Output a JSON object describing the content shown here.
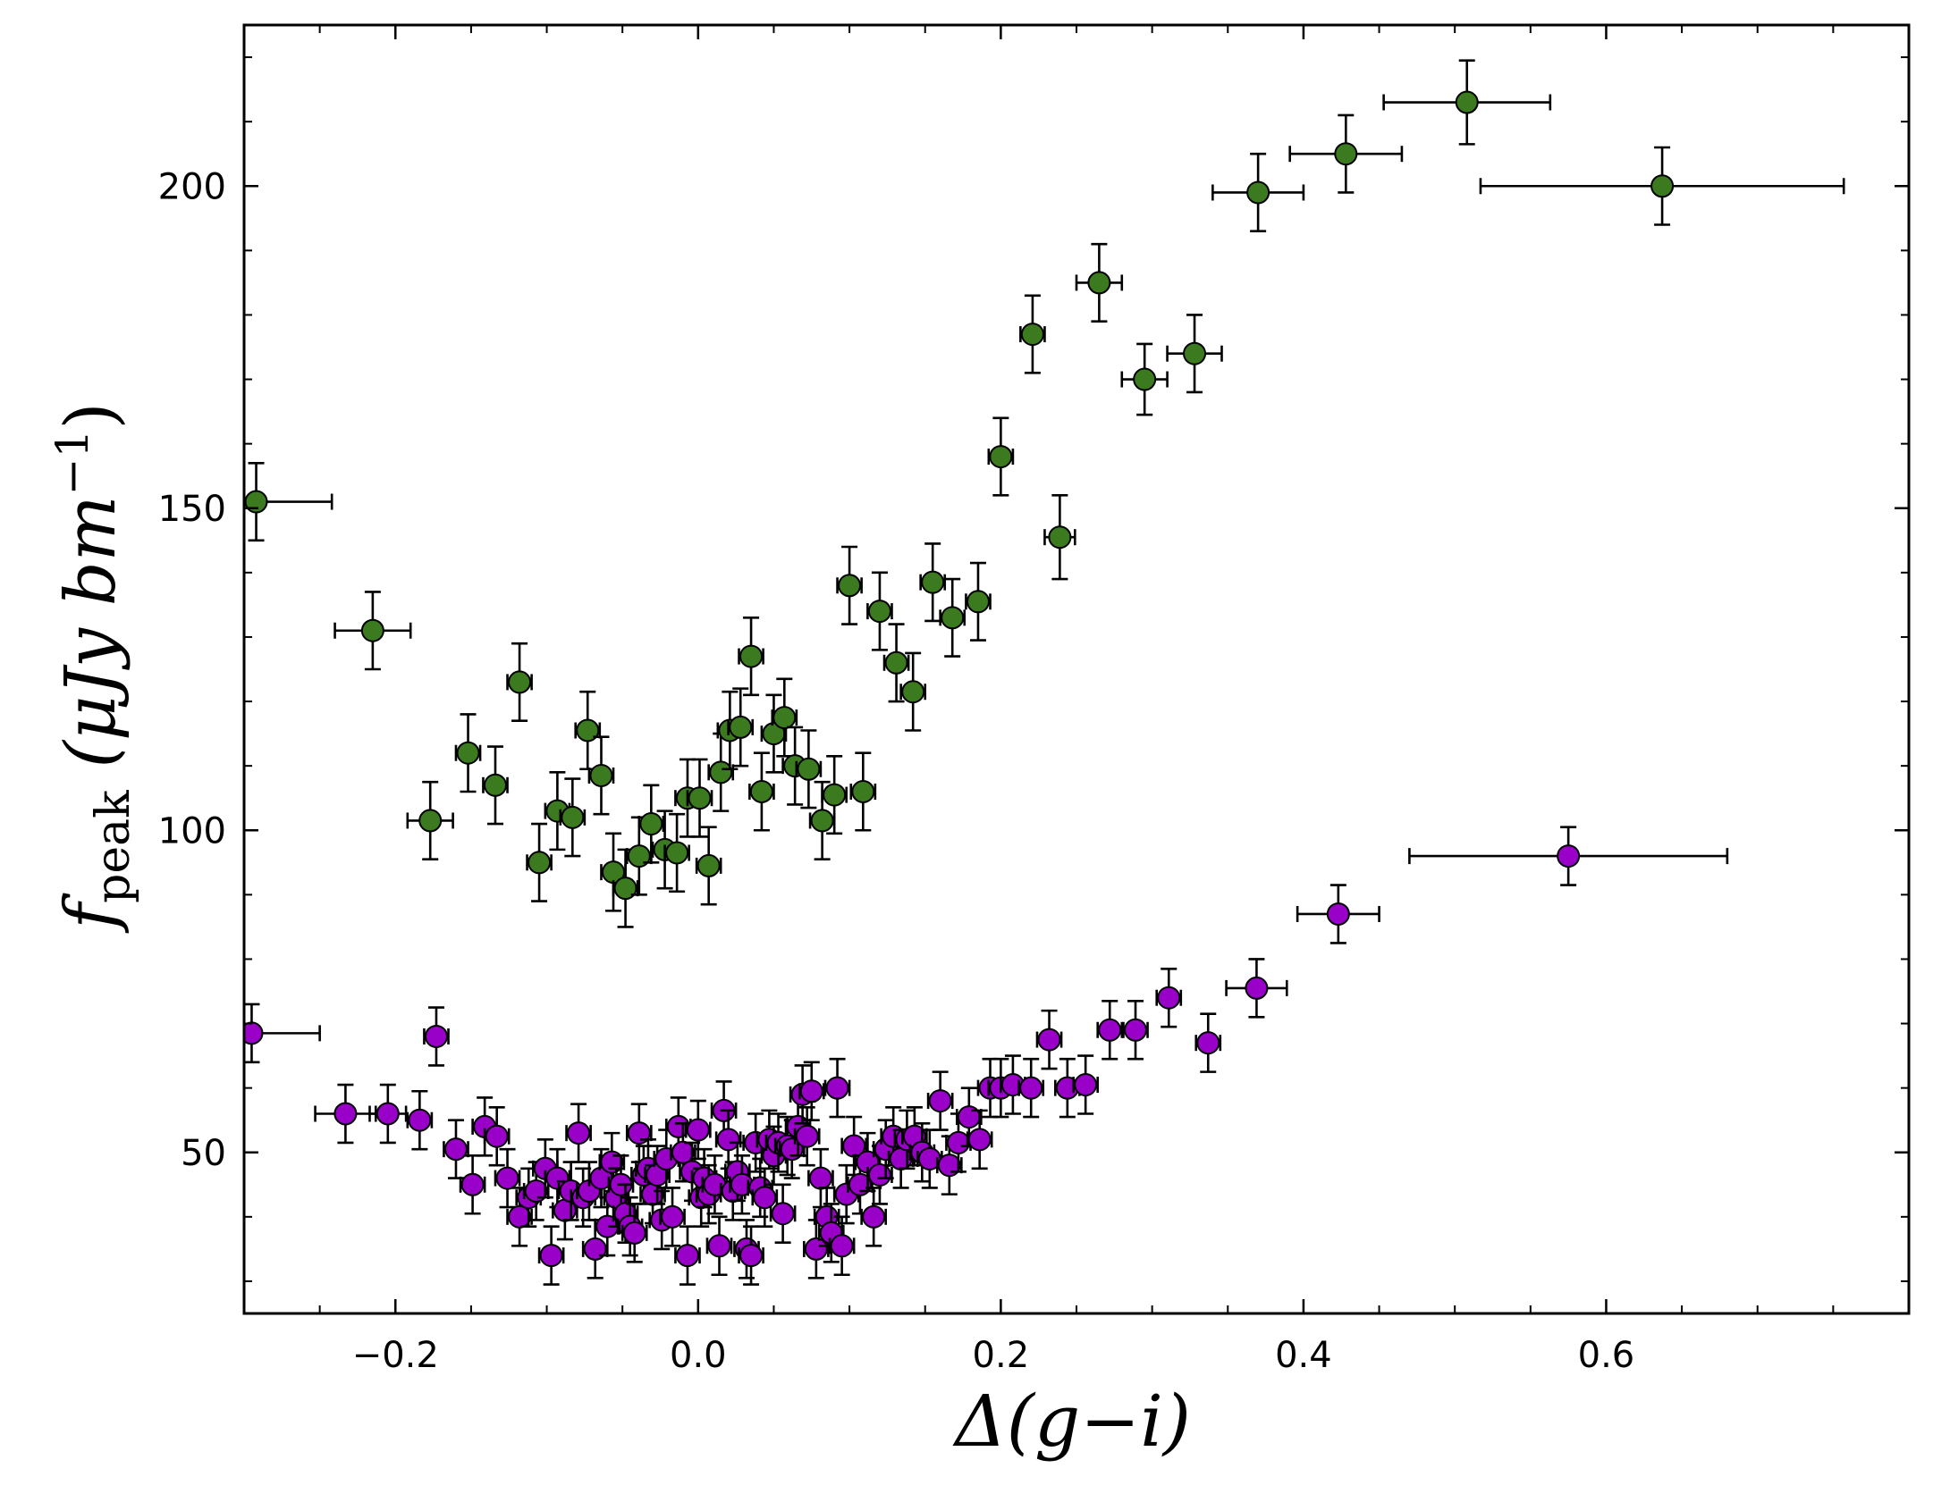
{
  "chart_data": {
    "type": "scatter",
    "title": "",
    "xlabel": "Δ(g−i)",
    "ylabel_symbol": "f",
    "ylabel_subscript": "peak",
    "ylabel_units_open": "(μJy bm",
    "ylabel_units_exponent": "−1",
    "ylabel_units_close": ")",
    "xlim": [
      -0.3,
      0.8
    ],
    "ylim": [
      25,
      225
    ],
    "xticks": [
      -0.2,
      0.0,
      0.2,
      0.4,
      0.6
    ],
    "xtick_labels": [
      "−0.2",
      "0.0",
      "0.2",
      "0.4",
      "0.6"
    ],
    "yticks": [
      50,
      100,
      150,
      200
    ],
    "ytick_labels": [
      "50",
      "100",
      "150",
      "200"
    ],
    "grid": false,
    "series": [
      {
        "name": "green",
        "color": "#3b7a1e",
        "points": [
          [
            -0.292,
            151,
            0.05,
            6
          ],
          [
            -0.215,
            131,
            0.025,
            6
          ],
          [
            -0.177,
            101.5,
            0.015,
            6
          ],
          [
            -0.152,
            112,
            0.008,
            6
          ],
          [
            -0.134,
            107,
            0.008,
            6
          ],
          [
            -0.118,
            123,
            0.008,
            6
          ],
          [
            -0.105,
            95,
            0.008,
            6
          ],
          [
            -0.093,
            103,
            0.008,
            6
          ],
          [
            -0.083,
            102,
            0.008,
            6
          ],
          [
            -0.073,
            115.5,
            0.008,
            6
          ],
          [
            -0.064,
            108.5,
            0.008,
            6
          ],
          [
            -0.056,
            93.5,
            0.008,
            6
          ],
          [
            -0.048,
            91,
            0.008,
            6
          ],
          [
            -0.039,
            96,
            0.008,
            6
          ],
          [
            -0.031,
            101,
            0.008,
            6
          ],
          [
            -0.022,
            97,
            0.008,
            6
          ],
          [
            -0.014,
            96.5,
            0.008,
            6
          ],
          [
            -0.007,
            105,
            0.008,
            6
          ],
          [
            0.001,
            105,
            0.008,
            6
          ],
          [
            0.007,
            94.5,
            0.008,
            6
          ],
          [
            0.015,
            109,
            0.008,
            6
          ],
          [
            0.021,
            115.5,
            0.008,
            6
          ],
          [
            0.028,
            116,
            0.008,
            6
          ],
          [
            0.035,
            127,
            0.008,
            6
          ],
          [
            0.042,
            106,
            0.008,
            6
          ],
          [
            0.05,
            115,
            0.008,
            6
          ],
          [
            0.057,
            117.5,
            0.008,
            6
          ],
          [
            0.064,
            110,
            0.008,
            6
          ],
          [
            0.073,
            109.5,
            0.008,
            6
          ],
          [
            0.082,
            101.5,
            0.008,
            6
          ],
          [
            0.09,
            105.5,
            0.008,
            6
          ],
          [
            0.1,
            138,
            0.008,
            6
          ],
          [
            0.109,
            106,
            0.008,
            6
          ],
          [
            0.12,
            134,
            0.008,
            6
          ],
          [
            0.131,
            126,
            0.008,
            6
          ],
          [
            0.142,
            121.5,
            0.008,
            6
          ],
          [
            0.155,
            138.5,
            0.008,
            6
          ],
          [
            0.168,
            133,
            0.008,
            6
          ],
          [
            0.185,
            135.5,
            0.008,
            6
          ],
          [
            0.2,
            158,
            0.008,
            6
          ],
          [
            0.221,
            177,
            0.008,
            6
          ],
          [
            0.239,
            145.5,
            0.01,
            6.5
          ],
          [
            0.265,
            185,
            0.015,
            6
          ],
          [
            0.295,
            170,
            0.015,
            5.5
          ],
          [
            0.328,
            174,
            0.018,
            6
          ],
          [
            0.37,
            199,
            0.03,
            6
          ],
          [
            0.428,
            205,
            0.037,
            6
          ],
          [
            0.508,
            213,
            0.055,
            6.5
          ],
          [
            0.637,
            200,
            0.12,
            6
          ]
        ]
      },
      {
        "name": "purple",
        "color": "#9900c8",
        "points": [
          [
            -0.295,
            68.5,
            0.045,
            4.5
          ],
          [
            -0.233,
            56,
            0.02,
            4.5
          ],
          [
            -0.205,
            56,
            0.012,
            4.5
          ],
          [
            -0.184,
            55,
            0.008,
            4.5
          ],
          [
            -0.173,
            68,
            0.008,
            4.5
          ],
          [
            -0.16,
            50.5,
            0.008,
            4.5
          ],
          [
            -0.149,
            45,
            0.008,
            4.5
          ],
          [
            -0.141,
            54,
            0.008,
            4.5
          ],
          [
            -0.133,
            52.5,
            0.008,
            4.5
          ],
          [
            -0.126,
            46,
            0.008,
            4.5
          ],
          [
            -0.118,
            40,
            0.008,
            4.5
          ],
          [
            -0.112,
            43,
            0.008,
            4.5
          ],
          [
            -0.107,
            44,
            0.008,
            4.5
          ],
          [
            -0.101,
            47.5,
            0.008,
            4.5
          ],
          [
            -0.097,
            34,
            0.008,
            4.5
          ],
          [
            -0.093,
            46,
            0.008,
            4.5
          ],
          [
            -0.088,
            41,
            0.008,
            4.5
          ],
          [
            -0.084,
            44,
            0.008,
            4.5
          ],
          [
            -0.079,
            53,
            0.008,
            4.5
          ],
          [
            -0.076,
            43,
            0.008,
            4.5
          ],
          [
            -0.072,
            44,
            0.008,
            4.5
          ],
          [
            -0.068,
            35,
            0.008,
            4.5
          ],
          [
            -0.064,
            46,
            0.008,
            4.5
          ],
          [
            -0.06,
            38.5,
            0.008,
            4.5
          ],
          [
            -0.057,
            48.5,
            0.008,
            4.5
          ],
          [
            -0.054,
            43,
            0.008,
            4.5
          ],
          [
            -0.051,
            45,
            0.008,
            4.5
          ],
          [
            -0.048,
            40.5,
            0.008,
            4.5
          ],
          [
            -0.045,
            38.5,
            0.008,
            4.5
          ],
          [
            -0.042,
            37.5,
            0.008,
            4.5
          ],
          [
            -0.039,
            53,
            0.008,
            4.5
          ],
          [
            -0.036,
            46.5,
            0.008,
            4.5
          ],
          [
            -0.033,
            47.5,
            0.008,
            4.5
          ],
          [
            -0.03,
            43.5,
            0.008,
            4.5
          ],
          [
            -0.027,
            46.5,
            0.008,
            4.5
          ],
          [
            -0.024,
            39.5,
            0.008,
            4.5
          ],
          [
            -0.021,
            49,
            0.008,
            4.5
          ],
          [
            -0.017,
            40,
            0.008,
            4.5
          ],
          [
            -0.013,
            54,
            0.008,
            4.5
          ],
          [
            -0.01,
            50,
            0.008,
            4.5
          ],
          [
            -0.007,
            34,
            0.008,
            4.5
          ],
          [
            -0.004,
            47,
            0.008,
            4.5
          ],
          [
            0.0,
            53.5,
            0.008,
            4.5
          ],
          [
            0.002,
            43,
            0.008,
            4.5
          ],
          [
            0.004,
            46,
            0.008,
            4.5
          ],
          [
            0.007,
            43.5,
            0.008,
            4.5
          ],
          [
            0.011,
            45,
            0.008,
            4.5
          ],
          [
            0.014,
            35.5,
            0.008,
            4.5
          ],
          [
            0.017,
            56.5,
            0.008,
            4.5
          ],
          [
            0.02,
            52,
            0.008,
            4.5
          ],
          [
            0.023,
            44,
            0.008,
            4.5
          ],
          [
            0.026,
            47,
            0.008,
            4.5
          ],
          [
            0.029,
            45,
            0.008,
            4.5
          ],
          [
            0.032,
            35,
            0.008,
            4.5
          ],
          [
            0.035,
            34,
            0.008,
            4.5
          ],
          [
            0.038,
            51.5,
            0.008,
            4.5
          ],
          [
            0.041,
            44.5,
            0.008,
            4.5
          ],
          [
            0.044,
            43,
            0.008,
            4.5
          ],
          [
            0.047,
            52,
            0.008,
            4.5
          ],
          [
            0.05,
            49.5,
            0.008,
            4.5
          ],
          [
            0.053,
            51.5,
            0.008,
            4.5
          ],
          [
            0.056,
            40.5,
            0.008,
            4.5
          ],
          [
            0.059,
            51,
            0.008,
            4.5
          ],
          [
            0.062,
            50.5,
            0.008,
            4.5
          ],
          [
            0.066,
            54,
            0.008,
            4.5
          ],
          [
            0.069,
            59,
            0.008,
            4.5
          ],
          [
            0.072,
            52.5,
            0.008,
            4.5
          ],
          [
            0.075,
            59.5,
            0.008,
            4.5
          ],
          [
            0.078,
            35,
            0.008,
            4.5
          ],
          [
            0.081,
            46,
            0.008,
            4.5
          ],
          [
            0.085,
            40,
            0.008,
            4.5
          ],
          [
            0.088,
            37.5,
            0.008,
            4.5
          ],
          [
            0.092,
            60,
            0.008,
            4.5
          ],
          [
            0.095,
            35.5,
            0.008,
            4.5
          ],
          [
            0.098,
            43.5,
            0.008,
            4.5
          ],
          [
            0.103,
            51,
            0.008,
            4.5
          ],
          [
            0.107,
            45,
            0.008,
            4.5
          ],
          [
            0.112,
            48.5,
            0.008,
            4.5
          ],
          [
            0.116,
            40,
            0.008,
            4.5
          ],
          [
            0.12,
            46.5,
            0.008,
            4.5
          ],
          [
            0.124,
            50.5,
            0.008,
            4.5
          ],
          [
            0.129,
            52.5,
            0.008,
            4.5
          ],
          [
            0.134,
            49,
            0.008,
            4.5
          ],
          [
            0.138,
            52,
            0.008,
            4.5
          ],
          [
            0.143,
            52.5,
            0.008,
            4.5
          ],
          [
            0.148,
            50,
            0.008,
            4.5
          ],
          [
            0.153,
            49,
            0.008,
            4.5
          ],
          [
            0.16,
            58,
            0.008,
            4.5
          ],
          [
            0.166,
            48,
            0.008,
            4.5
          ],
          [
            0.172,
            51.5,
            0.008,
            4.5
          ],
          [
            0.179,
            55.5,
            0.008,
            4.5
          ],
          [
            0.186,
            52,
            0.008,
            4.5
          ],
          [
            0.193,
            60,
            0.008,
            4.5
          ],
          [
            0.2,
            60,
            0.008,
            4.5
          ],
          [
            0.208,
            60.5,
            0.008,
            4.5
          ],
          [
            0.22,
            60,
            0.008,
            4.5
          ],
          [
            0.232,
            67.5,
            0.008,
            4.5
          ],
          [
            0.244,
            60,
            0.008,
            4.5
          ],
          [
            0.256,
            60.5,
            0.008,
            4.5
          ],
          [
            0.272,
            69,
            0.008,
            4.5
          ],
          [
            0.289,
            69,
            0.008,
            4.5
          ],
          [
            0.311,
            74,
            0.008,
            4.5
          ],
          [
            0.337,
            67,
            0.008,
            4.5
          ],
          [
            0.369,
            75.5,
            0.02,
            4.5
          ],
          [
            0.423,
            87,
            0.027,
            4.5
          ],
          [
            0.575,
            96,
            0.105,
            4.5
          ]
        ]
      }
    ]
  }
}
